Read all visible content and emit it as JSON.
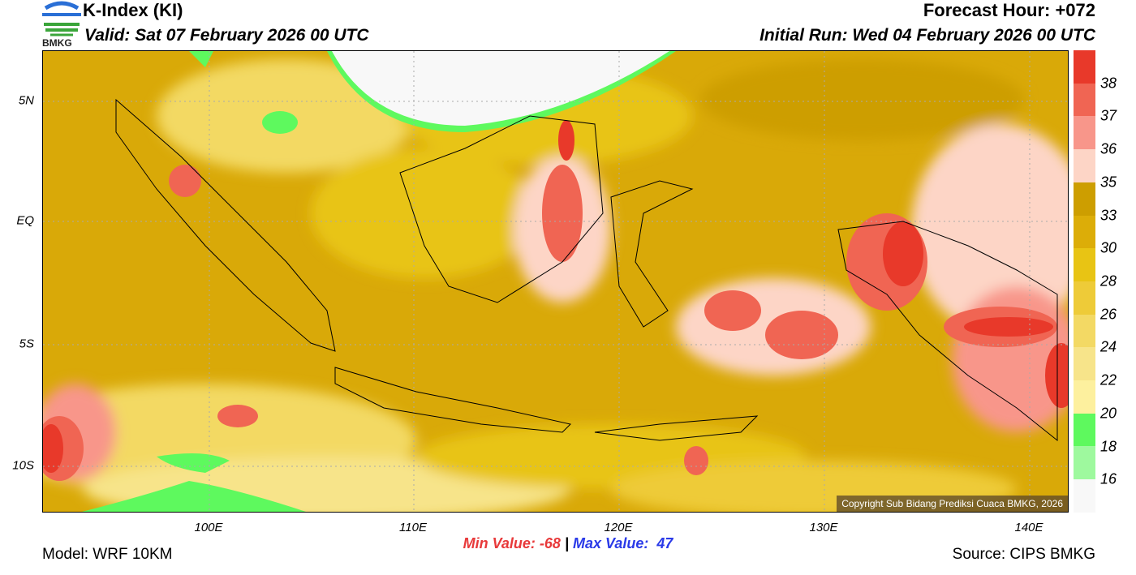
{
  "header": {
    "title": "K-Index (KI)",
    "valid": "Valid: Sat 07 February 2026 00 UTC",
    "forecast_hour": "Forecast Hour: +072",
    "initial_run": "Initial Run: Wed 04 February 2026 00 UTC",
    "logo_text": "BMKG"
  },
  "map": {
    "lon_ticks": [
      "100E",
      "110E",
      "120E",
      "130E",
      "140E"
    ],
    "lat_ticks": [
      "5N",
      "EQ",
      "5S",
      "10S"
    ],
    "copyright": "Copyright Sub Bidang Prediksi Cuaca BMKG, 2026"
  },
  "colorbar": {
    "labels": [
      "38",
      "37",
      "36",
      "35",
      "33",
      "30",
      "28",
      "26",
      "24",
      "22",
      "20",
      "18",
      "16"
    ],
    "colors": [
      "#e8392a",
      "#f06553",
      "#f8968a",
      "#fdd5c6",
      "#cd9e00",
      "#dcad08",
      "#e8c414",
      "#eecb38",
      "#f3d964",
      "#f7e48a",
      "#fdf09e",
      "#5ef95e",
      "#9ef99e",
      "#f8f8f8"
    ]
  },
  "stats": {
    "min_label": "Min Value: -68",
    "separator": "|",
    "max_label": "Max Value:  47",
    "min_color": "#e8393a",
    "max_color": "#2a3ae8"
  },
  "footer": {
    "model": "Model: WRF 10KM",
    "source": "Source: CIPS BMKG"
  }
}
